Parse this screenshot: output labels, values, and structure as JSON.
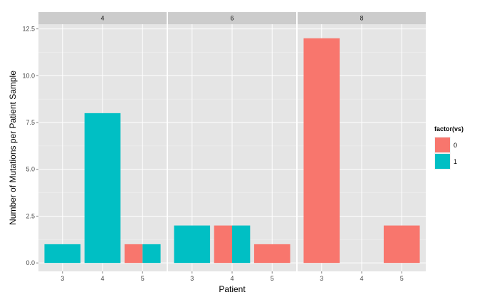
{
  "chart_data": {
    "type": "bar",
    "xlabel": "Patient",
    "ylabel": "Number of Mutations per Patient Sample",
    "ylim": [
      -0.45,
      12.75
    ],
    "y_ticks": [
      0,
      2.5,
      5,
      7.5,
      10,
      12.5
    ],
    "y_tick_labels": [
      "0.0",
      "2.5",
      "5.0",
      "7.5",
      "10.0",
      "12.5"
    ],
    "categories": [
      "3",
      "4",
      "5"
    ],
    "grid": true,
    "legend": {
      "title": "factor(vs)",
      "position": "right",
      "entries": [
        {
          "label": "0",
          "color": "#F8766D"
        },
        {
          "label": "1",
          "color": "#00BFC4"
        }
      ]
    },
    "panels": [
      {
        "strip": "4",
        "bars": [
          {
            "category": "3",
            "vs": "1",
            "value": 1,
            "color": "#00BFC4"
          },
          {
            "category": "4",
            "vs": "1",
            "value": 8,
            "color": "#00BFC4"
          },
          {
            "category": "5",
            "vs": "0",
            "value": 1,
            "color": "#F8766D"
          },
          {
            "category": "5",
            "vs": "1",
            "value": 1,
            "color": "#00BFC4"
          }
        ]
      },
      {
        "strip": "6",
        "bars": [
          {
            "category": "3",
            "vs": "1",
            "value": 2,
            "color": "#00BFC4"
          },
          {
            "category": "4",
            "vs": "0",
            "value": 2,
            "color": "#F8766D"
          },
          {
            "category": "4",
            "vs": "1",
            "value": 2,
            "color": "#00BFC4"
          },
          {
            "category": "5",
            "vs": "0",
            "value": 1,
            "color": "#F8766D"
          }
        ]
      },
      {
        "strip": "8",
        "bars": [
          {
            "category": "3",
            "vs": "0",
            "value": 12,
            "color": "#F8766D"
          },
          {
            "category": "5",
            "vs": "0",
            "value": 2,
            "color": "#F8766D"
          }
        ]
      }
    ]
  }
}
